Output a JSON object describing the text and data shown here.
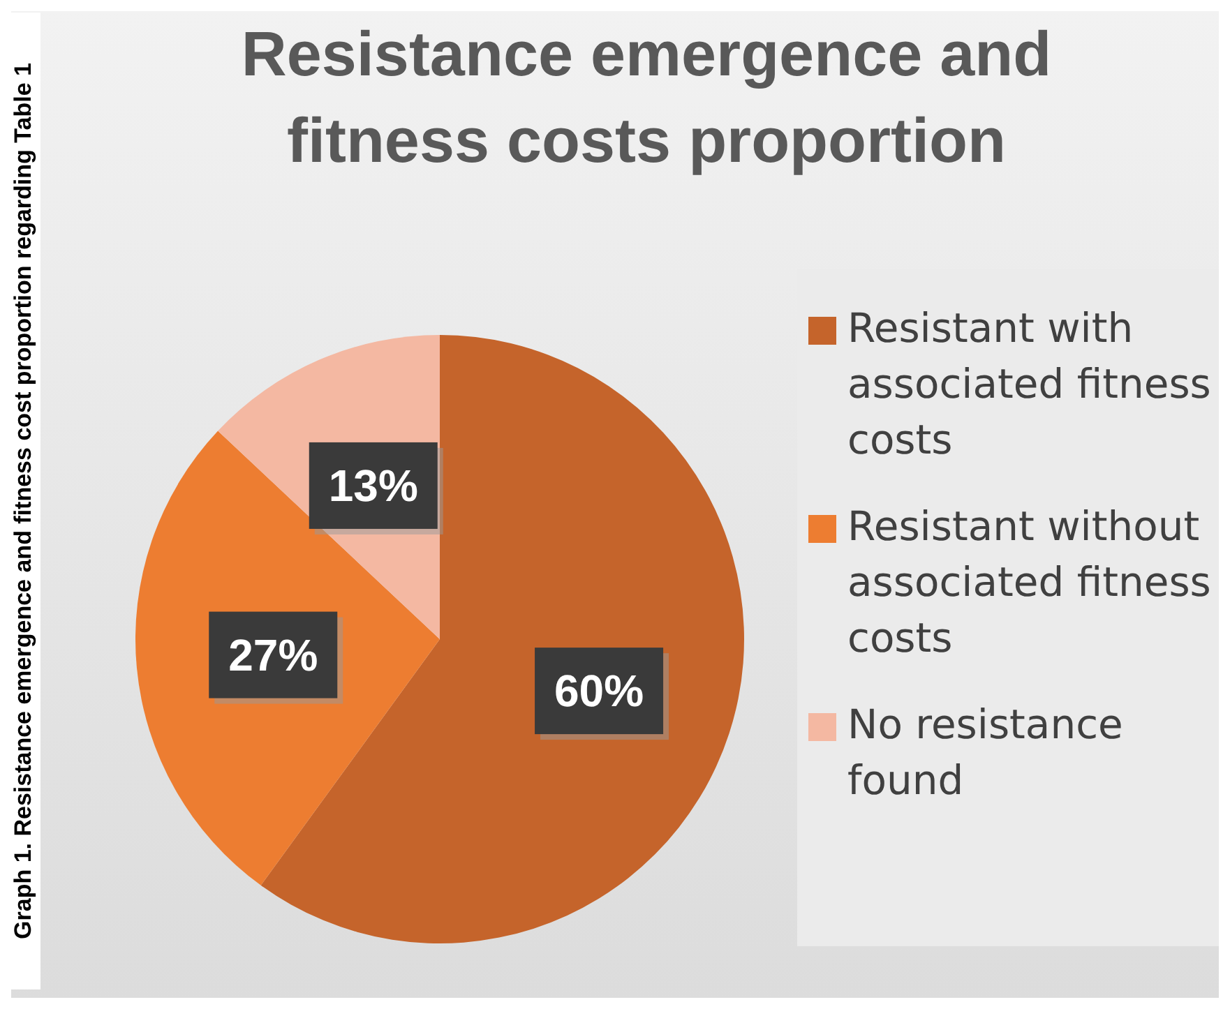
{
  "chart_data": {
    "type": "pie",
    "title": "Resistance emergence and fitness costs proportion",
    "categories": [
      "Resistant with associated fitness costs",
      "Resistant without associated fitness costs",
      "No resistance found"
    ],
    "values": [
      60,
      27,
      13
    ],
    "colors": [
      "#c5642b",
      "#ed7d31",
      "#f4b8a2"
    ],
    "value_labels": [
      "60%",
      "27%",
      "13%"
    ],
    "legend": "right",
    "annotations": [
      "Graph 1. Resistance emergence and fitness cost proportion regarding Table 1"
    ]
  }
}
